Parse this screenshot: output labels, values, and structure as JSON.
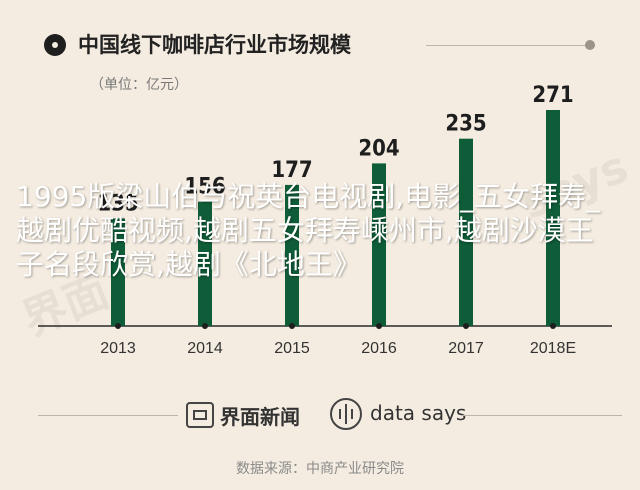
{
  "header": {
    "title": "中国线下咖啡店行业市场规模",
    "unit": "（单位：亿元）"
  },
  "overlay_text": "1995版梁山伯与祝英台电视剧,电影_五女拜寿_越剧优酷视频,越剧五女拜寿嵊州市,越剧沙漠王子名段欣赏,越剧《北地王》",
  "watermarks": {
    "left": "界面",
    "right": "says"
  },
  "footer": {
    "brand1": "界面新闻",
    "brand2": "data says",
    "source": "数据来源：中商产业研究院"
  },
  "colors": {
    "background": "#f4ece0",
    "bar": "#0f5c38",
    "text": "#1e1e1e"
  },
  "chart_data": {
    "type": "bar",
    "categories": [
      "2013",
      "2014",
      "2015",
      "2016",
      "2017",
      "2018E"
    ],
    "values": [
      135,
      156,
      177,
      204,
      235,
      271
    ],
    "title": "中国线下咖啡店行业市场规模",
    "ylabel": "",
    "unit": "亿元",
    "ylim": [
      0,
      271
    ],
    "grid": false,
    "legend": "none"
  }
}
